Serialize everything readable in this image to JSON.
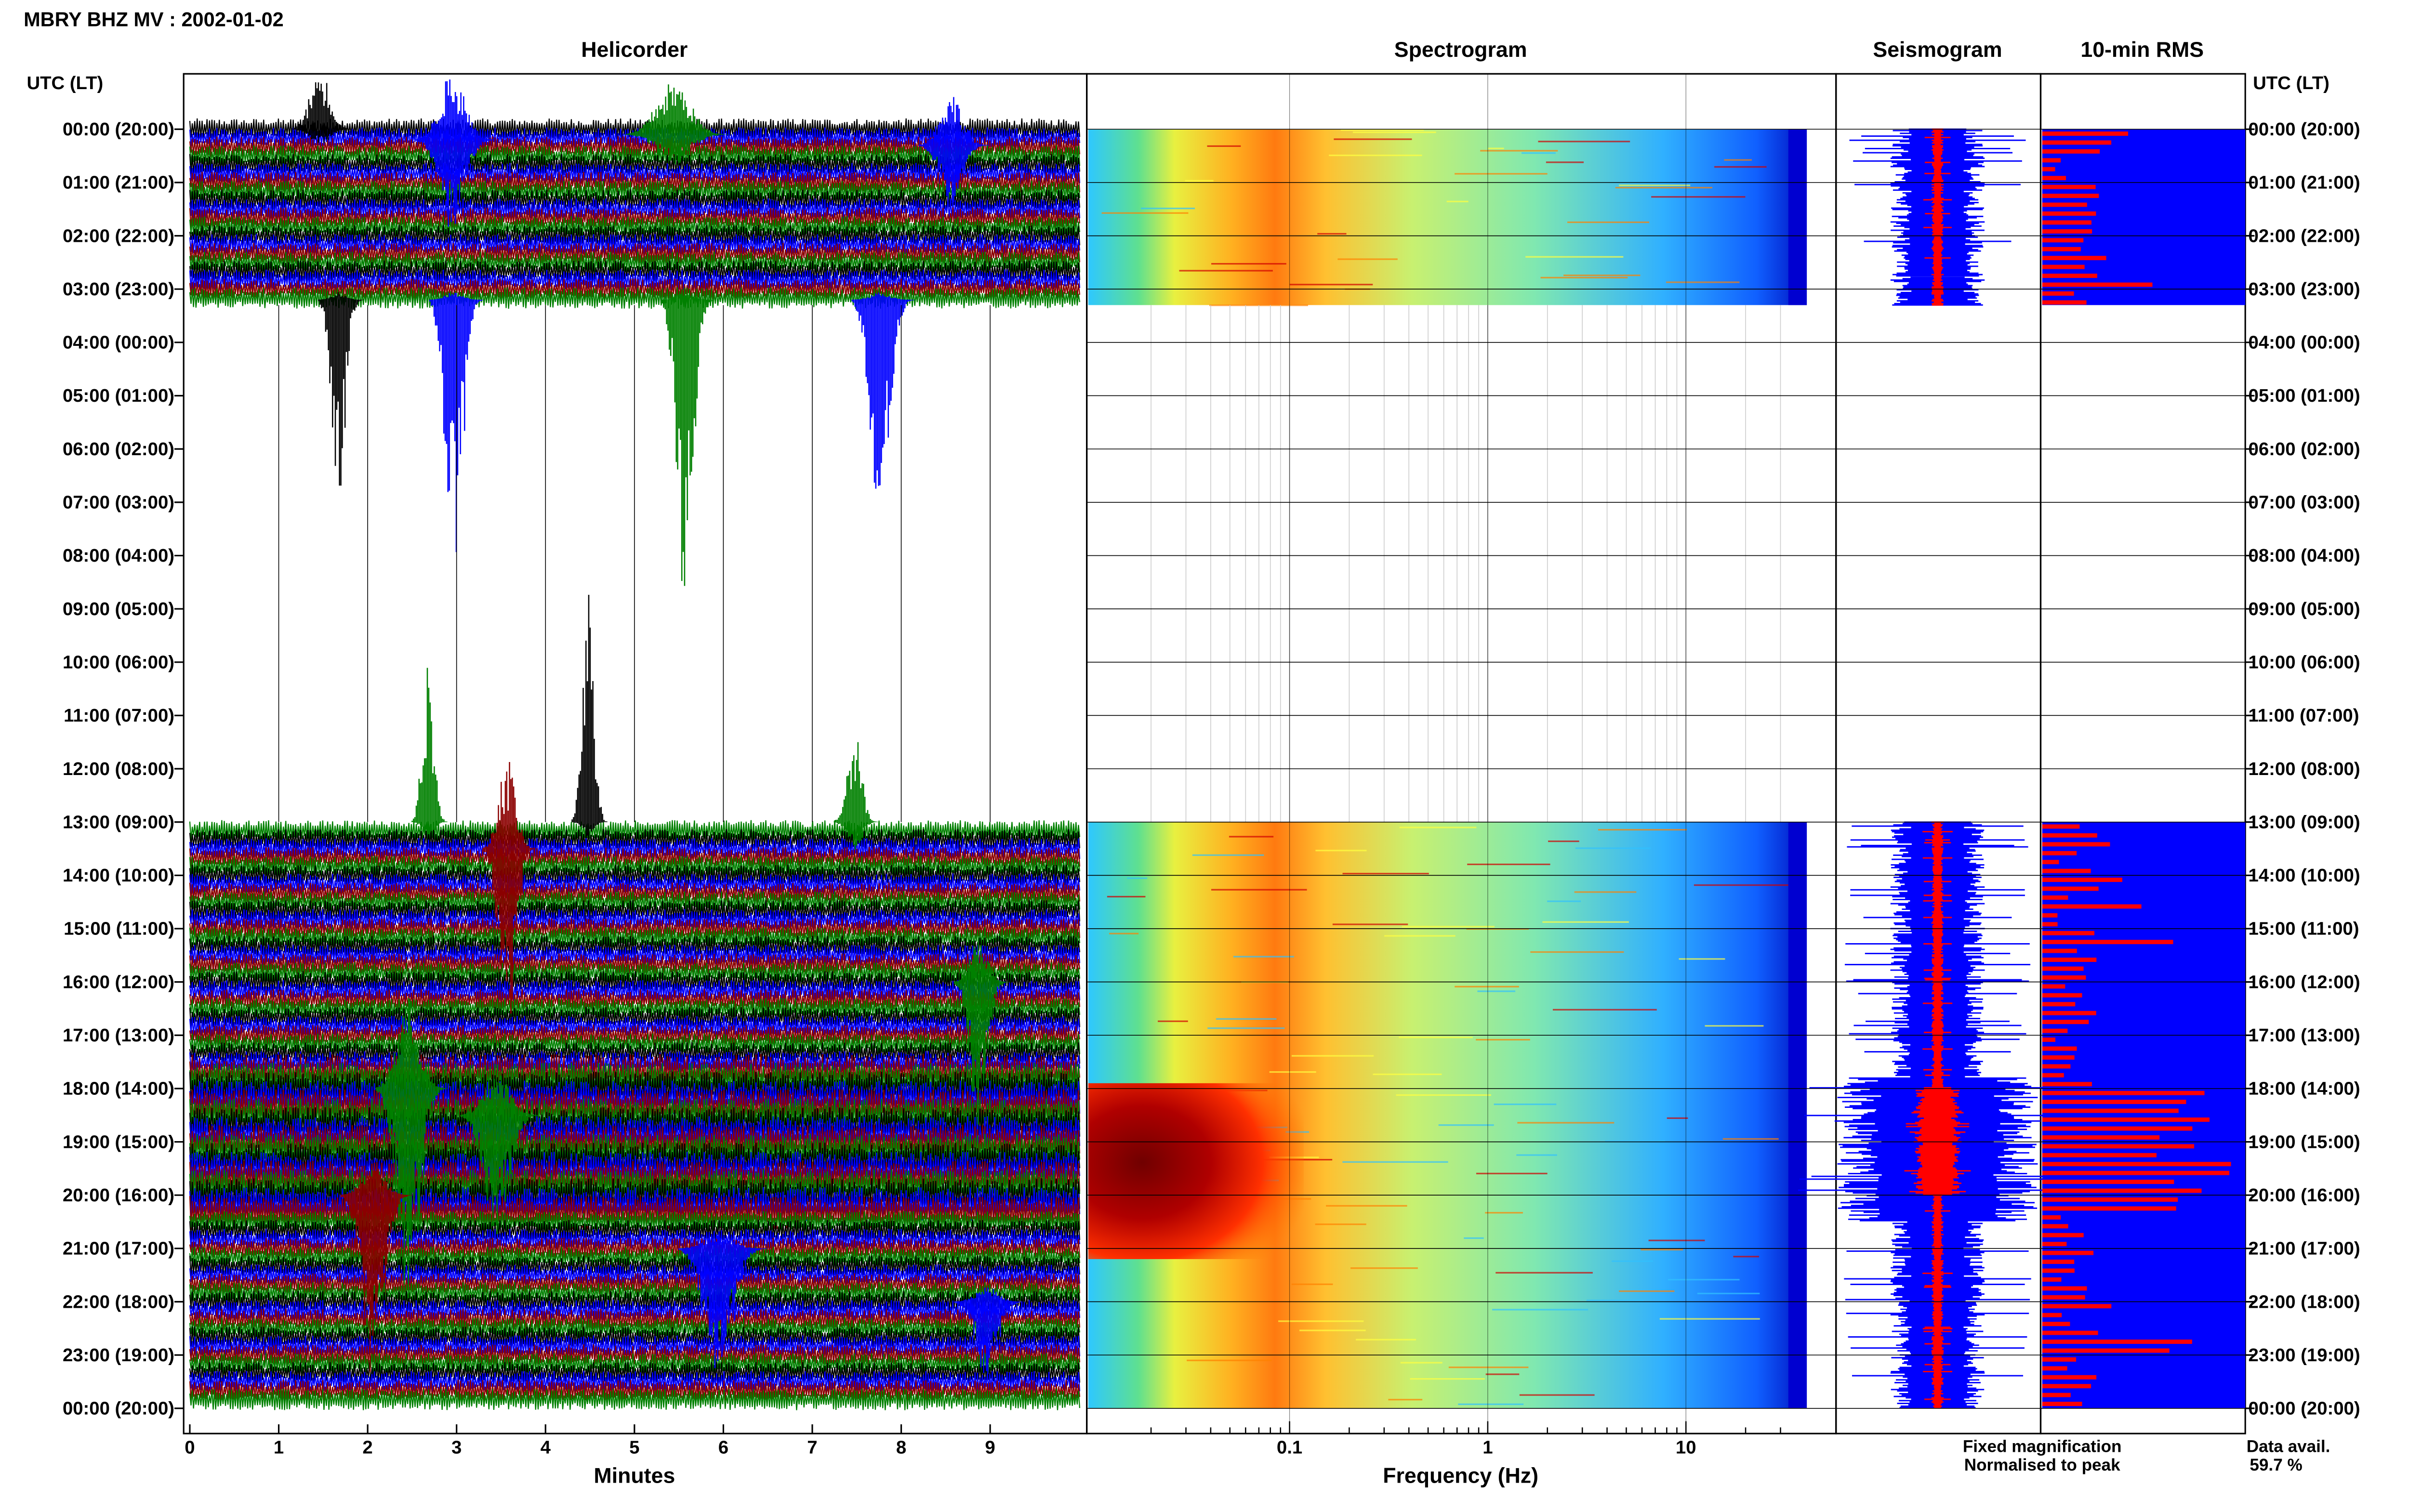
{
  "header": {
    "title": "MBRY BHZ MV : 2002-01-02",
    "utc_label_left": "UTC (LT)",
    "utc_label_right": "UTC (LT)"
  },
  "panels": {
    "helicorder": "Helicorder",
    "spectrogram": "Spectrogram",
    "seismogram": "Seismogram",
    "rms": "10-min RMS"
  },
  "time_labels": [
    "00:00 (20:00)",
    "01:00 (21:00)",
    "02:00 (22:00)",
    "03:00 (23:00)",
    "04:00 (00:00)",
    "05:00 (01:00)",
    "06:00 (02:00)",
    "07:00 (03:00)",
    "08:00 (04:00)",
    "09:00 (05:00)",
    "10:00 (06:00)",
    "11:00 (07:00)",
    "12:00 (08:00)",
    "13:00 (09:00)",
    "14:00 (10:00)",
    "15:00 (11:00)",
    "16:00 (12:00)",
    "17:00 (13:00)",
    "18:00 (14:00)",
    "19:00 (15:00)",
    "20:00 (16:00)",
    "21:00 (17:00)",
    "22:00 (18:00)",
    "23:00 (19:00)",
    "00:00 (20:00)"
  ],
  "legend": {
    "fixed": "Fixed magnification",
    "normalised": "Normalised to peak",
    "fixed_color": "#0000ff",
    "normalised_color": "#ff0000"
  },
  "data_avail": {
    "label": "Data avail.",
    "value": "59.7 %"
  },
  "chart_data": [
    {
      "type": "line",
      "panel": "Helicorder",
      "xlabel": "Minutes",
      "x_ticks": [
        "0",
        "1",
        "2",
        "3",
        "4",
        "5",
        "6",
        "7",
        "8",
        "9"
      ],
      "xlim": [
        0,
        10
      ],
      "series_colors": [
        "#000000",
        "#0000ff",
        "#8b0000",
        "#008000"
      ],
      "data_gaps_utc_hours": [
        [
          3.3,
          13.0
        ]
      ]
    },
    {
      "type": "heatmap",
      "panel": "Spectrogram",
      "xlabel": "Frequency (Hz)",
      "x_ticks": [
        "0.1",
        "1",
        "10"
      ],
      "xscale": "log",
      "xlim": [
        0.01,
        40
      ],
      "data_gaps_utc_hours": [
        [
          3.3,
          13.0
        ]
      ]
    },
    {
      "type": "line",
      "panel": "Seismogram",
      "series": [
        {
          "name": "Fixed magnification",
          "color": "#0000ff"
        },
        {
          "name": "Normalised to peak",
          "color": "#ff0000"
        }
      ]
    },
    {
      "type": "bar",
      "panel": "10-min RMS",
      "orientation": "horizontal",
      "colors": [
        "#0000ff",
        "#ff0000"
      ]
    }
  ]
}
